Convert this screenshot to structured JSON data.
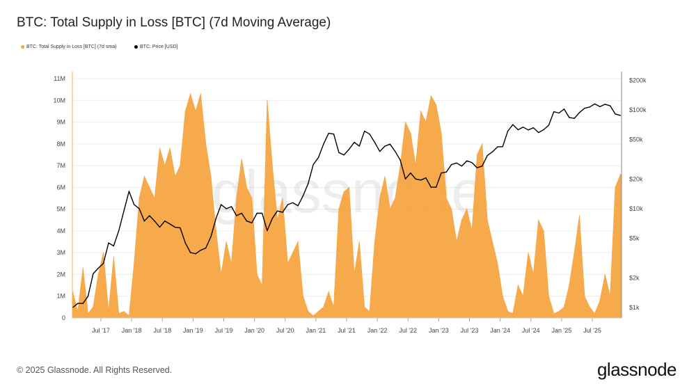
{
  "chart_data": {
    "type": "area",
    "title": "BTC: Total Supply in Loss [BTC] (7d Moving Average)",
    "legend": [
      "BTC: Total Supply in Loss [BTC] (7d sma)",
      "BTC: Price [USD]"
    ],
    "legend_placement": "top-left",
    "grid": true,
    "colors": {
      "supply": "#f7a541",
      "price": "#000000",
      "grid": "#ececec"
    },
    "x_ticks": [
      "Jul '17",
      "Jan '18",
      "Jul '18",
      "Jan '19",
      "Jul '19",
      "Jan '20",
      "Jul '20",
      "Jan '21",
      "Jul '21",
      "Jan '22",
      "Jul '22",
      "Jan '23",
      "Jul '23",
      "Jan '24",
      "Jul '24",
      "Jan '25",
      "Jul '25"
    ],
    "x_tick_dates": [
      "2017-07",
      "2018-01",
      "2018-07",
      "2019-01",
      "2019-07",
      "2020-01",
      "2020-07",
      "2021-01",
      "2021-07",
      "2022-01",
      "2022-07",
      "2023-01",
      "2023-07",
      "2024-01",
      "2024-07",
      "2025-01",
      "2025-07"
    ],
    "y_left": {
      "ticks": [
        "0",
        "1M",
        "2M",
        "3M",
        "4M",
        "5M",
        "6M",
        "7M",
        "8M",
        "9M",
        "10M",
        "11M"
      ],
      "range": [
        0,
        11000000
      ]
    },
    "y_right": {
      "scale": "log",
      "ticks": [
        "$1k",
        "$2k",
        "$5k",
        "$10k",
        "$20k",
        "$50k",
        "$100k",
        "$200k"
      ],
      "tick_values": [
        1000,
        2000,
        5000,
        10000,
        20000,
        50000,
        100000,
        200000
      ],
      "range": [
        850,
        200000
      ]
    },
    "x": [
      "2017-01",
      "2017-02",
      "2017-03",
      "2017-04",
      "2017-05",
      "2017-06",
      "2017-07",
      "2017-08",
      "2017-09",
      "2017-10",
      "2017-11",
      "2017-12",
      "2018-01",
      "2018-02",
      "2018-03",
      "2018-04",
      "2018-05",
      "2018-06",
      "2018-07",
      "2018-08",
      "2018-09",
      "2018-10",
      "2018-11",
      "2018-12",
      "2019-01",
      "2019-02",
      "2019-03",
      "2019-04",
      "2019-05",
      "2019-06",
      "2019-07",
      "2019-08",
      "2019-09",
      "2019-10",
      "2019-11",
      "2019-12",
      "2020-01",
      "2020-02",
      "2020-03",
      "2020-04",
      "2020-05",
      "2020-06",
      "2020-07",
      "2020-08",
      "2020-09",
      "2020-10",
      "2020-11",
      "2020-12",
      "2021-01",
      "2021-02",
      "2021-03",
      "2021-04",
      "2021-05",
      "2021-06",
      "2021-07",
      "2021-08",
      "2021-09",
      "2021-10",
      "2021-11",
      "2021-12",
      "2022-01",
      "2022-02",
      "2022-03",
      "2022-04",
      "2022-05",
      "2022-06",
      "2022-07",
      "2022-08",
      "2022-09",
      "2022-10",
      "2022-11",
      "2022-12",
      "2023-01",
      "2023-02",
      "2023-03",
      "2023-04",
      "2023-05",
      "2023-06",
      "2023-07",
      "2023-08",
      "2023-09",
      "2023-10",
      "2023-11",
      "2023-12",
      "2024-01",
      "2024-02",
      "2024-03",
      "2024-04",
      "2024-05",
      "2024-06",
      "2024-07",
      "2024-08",
      "2024-09",
      "2024-10",
      "2024-11",
      "2024-12",
      "2025-01",
      "2025-02",
      "2025-03",
      "2025-04",
      "2025-05",
      "2025-06",
      "2025-07",
      "2025-08",
      "2025-09",
      "2025-10",
      "2025-11",
      "2025-12"
    ],
    "series": [
      {
        "name": "BTC: Total Supply in Loss [BTC] (7d sma)",
        "axis": "left",
        "unit": "M BTC",
        "values": [
          1.2,
          0.3,
          2.3,
          0.2,
          0.5,
          2.0,
          3.0,
          0.3,
          2.8,
          0.2,
          0.3,
          0.1,
          2.5,
          5.5,
          6.5,
          6.0,
          5.5,
          7.8,
          7.0,
          7.8,
          6.5,
          7.0,
          9.5,
          10.3,
          9.5,
          10.3,
          8.0,
          6.5,
          4.0,
          2.0,
          3.5,
          2.5,
          5.5,
          7.3,
          6.0,
          5.5,
          2.0,
          1.5,
          10.0,
          7.0,
          4.5,
          5.5,
          2.5,
          3.0,
          3.5,
          1.0,
          0.3,
          0.1,
          0.3,
          0.5,
          1.2,
          0.5,
          5.0,
          5.8,
          6.0,
          2.0,
          3.5,
          0.5,
          0.3,
          3.5,
          5.5,
          6.5,
          5.0,
          5.5,
          7.0,
          9.0,
          8.5,
          7.0,
          9.5,
          9.0,
          10.2,
          9.8,
          8.5,
          5.5,
          5.0,
          3.5,
          4.5,
          5.0,
          4.0,
          7.5,
          8.0,
          4.5,
          3.5,
          2.5,
          1.0,
          0.3,
          0.2,
          1.5,
          1.0,
          3.0,
          2.0,
          4.5,
          4.0,
          1.0,
          0.2,
          0.3,
          0.5,
          1.5,
          3.0,
          4.7,
          1.0,
          0.5,
          0.2,
          0.8,
          2.0,
          1.0,
          6.0,
          6.6
        ]
      },
      {
        "name": "BTC: Price [USD]",
        "axis": "right",
        "unit": "USD",
        "values": [
          1000,
          1100,
          1100,
          1300,
          2200,
          2500,
          2800,
          4500,
          4200,
          6000,
          9500,
          15000,
          11000,
          10000,
          7500,
          8500,
          7500,
          6500,
          7500,
          7000,
          6500,
          6400,
          4500,
          3600,
          3500,
          3800,
          4000,
          5200,
          8000,
          11000,
          10000,
          10500,
          8500,
          9000,
          7500,
          7200,
          9000,
          9000,
          6000,
          8000,
          9500,
          9200,
          11000,
          11500,
          10700,
          13500,
          18000,
          28000,
          33000,
          45000,
          58000,
          57000,
          37000,
          35000,
          40000,
          47000,
          43000,
          61000,
          57000,
          47000,
          38000,
          43000,
          45000,
          38000,
          31000,
          20000,
          23000,
          20000,
          19500,
          20500,
          16500,
          16500,
          23000,
          23500,
          28000,
          29000,
          27000,
          30500,
          29300,
          26000,
          27000,
          34500,
          37700,
          42300,
          42500,
          61000,
          71000,
          63000,
          67000,
          62700,
          66000,
          59000,
          63000,
          70000,
          96000,
          93000,
          102000,
          84000,
          82000,
          94000,
          104000,
          107000,
          115000,
          108000,
          114000,
          110000,
          91000,
          88000
        ]
      }
    ]
  },
  "watermark": "glassnode",
  "footer": {
    "copyright": "© 2025 Glassnode. All Rights Reserved.",
    "logo": "glassnode"
  }
}
